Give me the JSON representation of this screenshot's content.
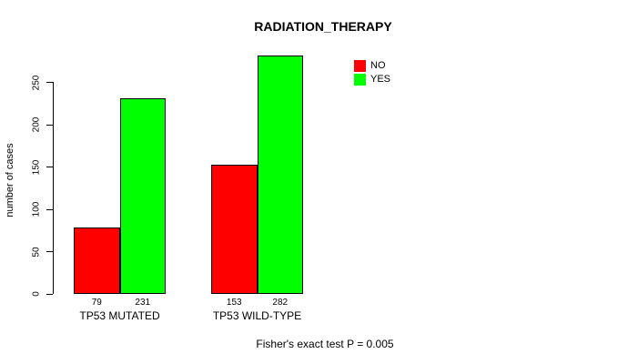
{
  "chart_data": {
    "type": "bar",
    "title": "RADIATION_THERAPY",
    "xlabel": "",
    "ylabel": "number of cases",
    "categories": [
      "TP53 MUTATED",
      "TP53 WILD-TYPE"
    ],
    "series": [
      {
        "name": "NO",
        "color": "#ff0000",
        "values": [
          79,
          153
        ]
      },
      {
        "name": "YES",
        "color": "#00ff00",
        "values": [
          231,
          282
        ]
      }
    ],
    "bar_value_labels": [
      [
        "79",
        "153"
      ],
      [
        "231",
        "282"
      ]
    ],
    "yticks": [
      0,
      50,
      100,
      150,
      200,
      250
    ],
    "ylim": [
      0,
      290
    ],
    "grid": false,
    "legend_position": "top-right",
    "annotation": "Fisher's exact test P = 0.005"
  },
  "colors": {
    "no": "#ff0000",
    "yes": "#00ff00",
    "axis": "#000000",
    "background": "#ffffff"
  }
}
